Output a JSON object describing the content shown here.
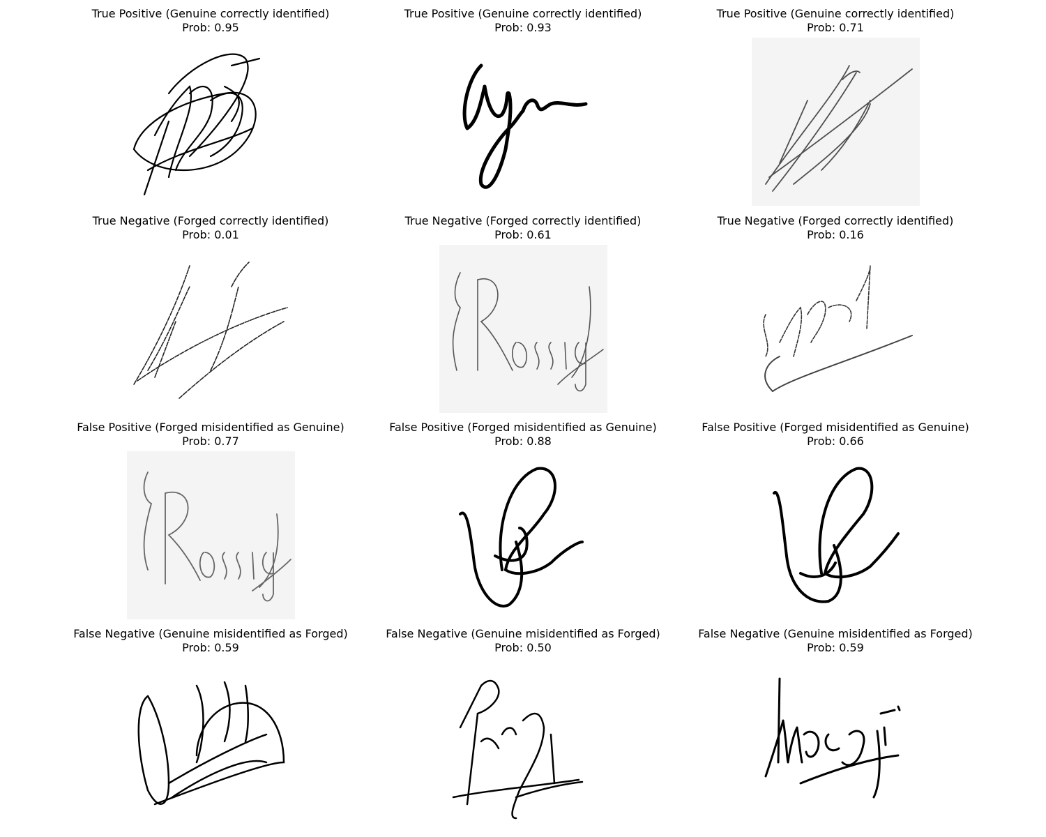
{
  "panels": [
    {
      "title": "True Positive (Genuine correctly identified)",
      "prob": "Prob: 0.95",
      "signature_icon": "signature-scribble-icon",
      "paper": false
    },
    {
      "title": "True Positive (Genuine correctly identified)",
      "prob": "Prob: 0.93",
      "signature_icon": "signature-cursive-icon",
      "paper": false
    },
    {
      "title": "True Positive (Genuine correctly identified)",
      "prob": "Prob: 0.71",
      "signature_icon": "signature-slashes-icon",
      "paper": true
    },
    {
      "title": "True Negative (Forged correctly identified)",
      "prob": "Prob: 0.01",
      "signature_icon": "signature-slashes-icon",
      "paper": false
    },
    {
      "title": "True Negative (Forged correctly identified)",
      "prob": "Prob: 0.61",
      "signature_icon": "signature-rossignol-icon",
      "paper": true
    },
    {
      "title": "True Negative (Forged correctly identified)",
      "prob": "Prob: 0.16",
      "signature_icon": "signature-swoosh-icon",
      "paper": false
    },
    {
      "title": "False Positive (Forged misidentified as Genuine)",
      "prob": "Prob: 0.77",
      "signature_icon": "signature-rossignol-icon",
      "paper": true
    },
    {
      "title": "False Positive (Forged misidentified as Genuine)",
      "prob": "Prob: 0.88",
      "signature_icon": "signature-loop-icon",
      "paper": false
    },
    {
      "title": "False Positive (Forged misidentified as Genuine)",
      "prob": "Prob: 0.66",
      "signature_icon": "signature-loop-icon",
      "paper": false
    },
    {
      "title": "False Negative (Genuine misidentified as Forged)",
      "prob": "Prob: 0.59",
      "signature_icon": "signature-oval-icon",
      "paper": false
    },
    {
      "title": "False Negative (Genuine misidentified as Forged)",
      "prob": "Prob: 0.50",
      "signature_icon": "signature-underline-icon",
      "paper": false
    },
    {
      "title": "False Negative (Genuine misidentified as Forged)",
      "prob": "Prob: 0.59",
      "signature_icon": "signature-underline-icon",
      "paper": false
    }
  ]
}
